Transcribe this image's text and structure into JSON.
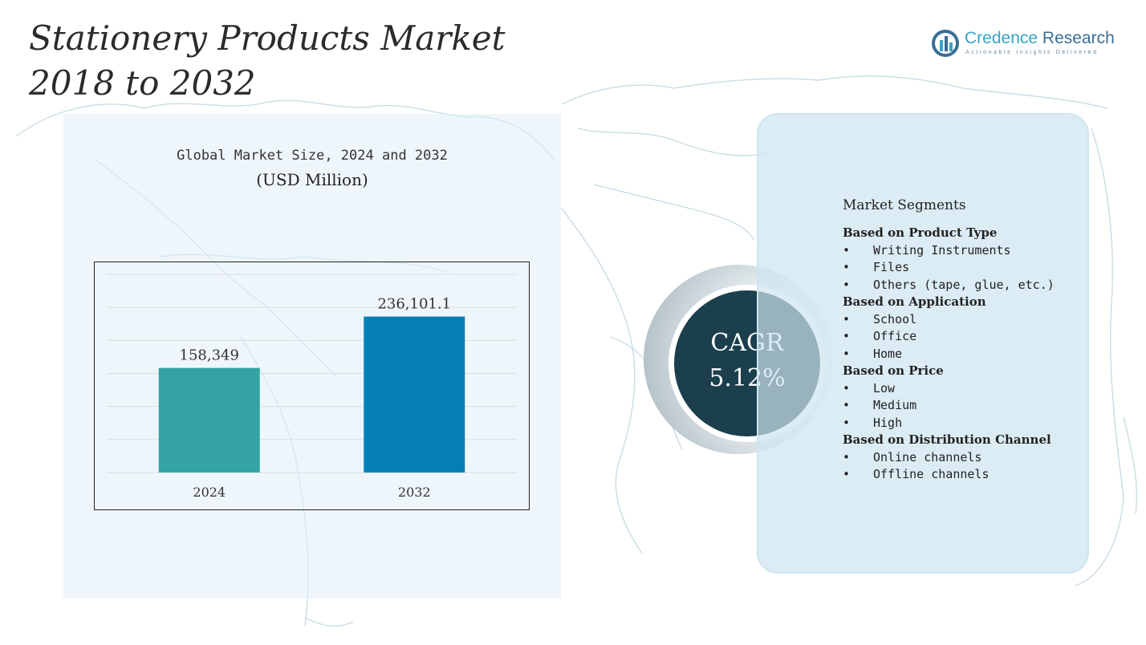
{
  "title_line1": "Stationery Products Market",
  "title_line2": "2018 to 2032",
  "logo": {
    "name_accent": "Credence",
    "name_rest": " Research",
    "tagline": "Actionable Insights Delivered",
    "icon": "credence-logo-icon"
  },
  "chart_panel": {
    "title": "Global Market Size, 2024 and 2032",
    "subtitle": "(USD Million)"
  },
  "chart_data": {
    "type": "bar",
    "title": "Global Market Size, 2024 and 2032",
    "subtitle": "(USD Million)",
    "categories": [
      "2024",
      "2032"
    ],
    "values": [
      158349,
      236101.1
    ],
    "data_labels": [
      "158,349",
      "236,101.1"
    ],
    "colors": [
      "#33a3a3",
      "#0580b4"
    ],
    "ylim": [
      0,
      300000
    ],
    "grid": true,
    "legend": "none"
  },
  "cagr": {
    "label": "CAGR",
    "value": "5.12%"
  },
  "segments": {
    "title": "Market Segments",
    "bullet": "•",
    "groups": [
      {
        "heading": "Based on Product Type",
        "items": [
          "Writing Instruments",
          "Files",
          "Others (tape, glue, etc.)"
        ]
      },
      {
        "heading": "Based on Application",
        "items": [
          "School",
          "Office",
          "Home"
        ]
      },
      {
        "heading": "Based on Price",
        "items": [
          "Low",
          "Medium",
          "High"
        ]
      },
      {
        "heading": "Based on Distribution Channel",
        "items": [
          "Online channels",
          "Offline channels"
        ]
      }
    ]
  },
  "colors": {
    "panel_bg": "#e0eff8",
    "segment_bg": "#cde4ef",
    "cagr_circle": "#1b3f4c",
    "map_lines": "#c9dde6"
  }
}
